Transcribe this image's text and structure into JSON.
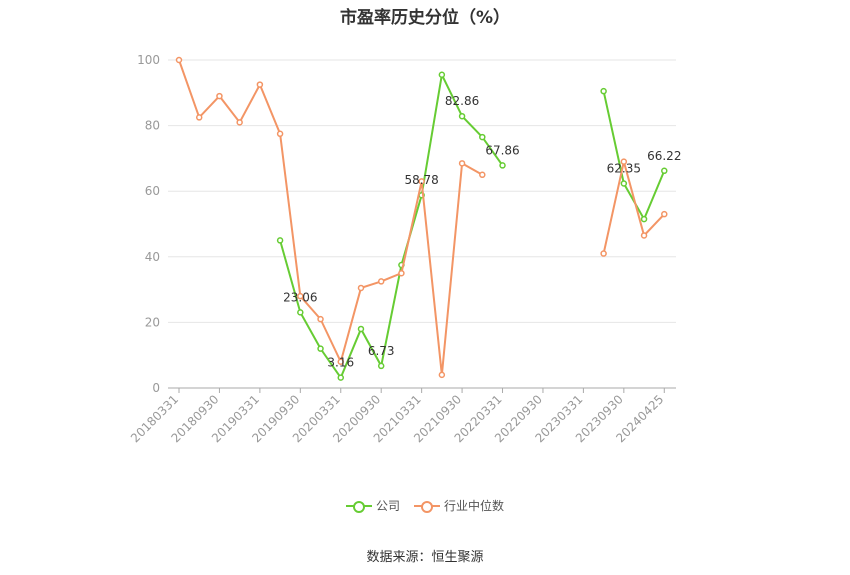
{
  "chart_data": {
    "type": "line",
    "title": "市盈率历史分位（%）",
    "ylim": [
      0,
      100
    ],
    "yticks": [
      0,
      20,
      40,
      60,
      80,
      100
    ],
    "x": [
      "20180331",
      "20180630",
      "20180930",
      "20181231",
      "20190331",
      "20190630",
      "20190930",
      "20191231",
      "20200331",
      "20200630",
      "20200930",
      "20201231",
      "20210331",
      "20210630",
      "20210930",
      "20211231",
      "20220331",
      "20220630",
      "20220930",
      "20221231",
      "20230331",
      "20230630",
      "20230930",
      "20231231",
      "20240425"
    ],
    "xtick_labels": [
      "20180331",
      "20180930",
      "20190331",
      "20190930",
      "20200331",
      "20200930",
      "20210331",
      "20210930",
      "20220331",
      "20220930",
      "20230331",
      "20230930",
      "20240425"
    ],
    "series": [
      {
        "name": "公司",
        "color": "#66cc33",
        "values": [
          null,
          null,
          null,
          null,
          null,
          45.0,
          23.06,
          12.0,
          3.16,
          18.0,
          6.73,
          37.5,
          58.78,
          95.5,
          82.86,
          76.5,
          67.86,
          null,
          null,
          null,
          null,
          90.5,
          62.35,
          51.5,
          66.22
        ],
        "data_labels": [
          null,
          null,
          null,
          null,
          null,
          null,
          "23.06",
          null,
          "3.16",
          null,
          "6.73",
          null,
          "58.78",
          null,
          "82.86",
          null,
          "67.86",
          null,
          null,
          null,
          null,
          null,
          "62.35",
          null,
          "66.22"
        ]
      },
      {
        "name": "行业中位数",
        "color": "#f39565",
        "values": [
          100.0,
          82.5,
          89.0,
          81.0,
          92.5,
          77.5,
          28.0,
          21.0,
          8.0,
          30.5,
          32.5,
          35.0,
          63.0,
          4.0,
          68.5,
          65.0,
          null,
          null,
          null,
          null,
          null,
          41.0,
          69.0,
          46.5,
          53.0
        ]
      }
    ],
    "legend_position": "bottom",
    "grid": true
  },
  "source_text": "数据来源：恒生聚源"
}
